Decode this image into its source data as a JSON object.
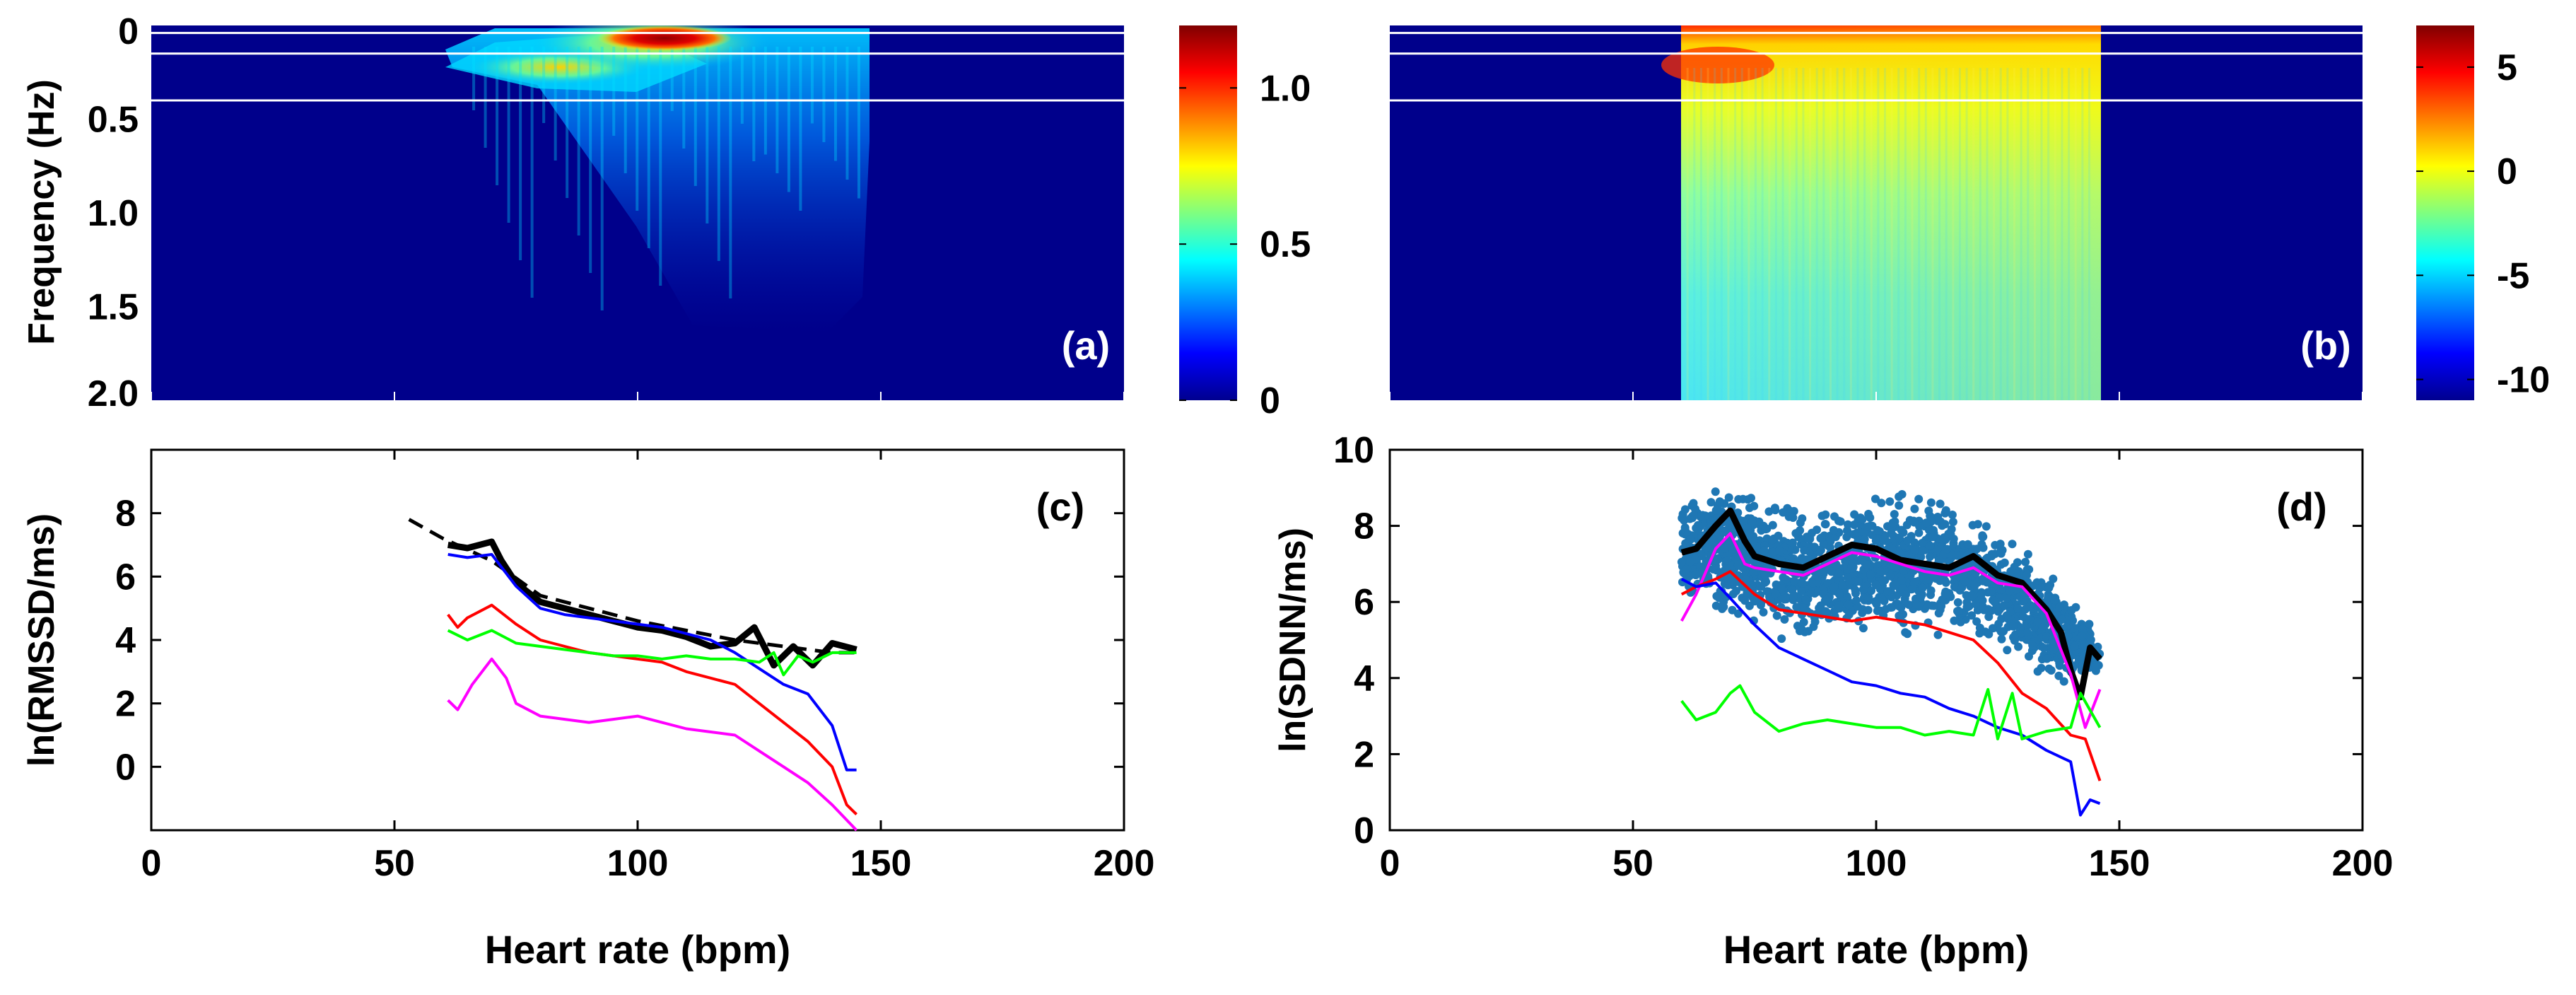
{
  "colors": {
    "background": "#ffffff",
    "heatmap_floor": "#00008b",
    "axis": "#000000",
    "black": "#000000",
    "blue": "#0000ff",
    "red": "#ff0000",
    "green": "#00ff00",
    "magenta": "#ff00ff",
    "scatter": "#1f77b4",
    "guide_line": "#ffffff"
  },
  "chart_data": [
    {
      "panel": "(a)",
      "type": "heatmap",
      "ylabel": "Frequency (Hz)",
      "y_ticks": [
        "0",
        "0.5",
        "1.0",
        "1.5",
        "2.0"
      ],
      "x_range": [
        0,
        200
      ],
      "y_range": [
        0,
        2.0
      ],
      "guide_lines_hz": [
        0.04,
        0.15,
        0.4
      ],
      "colorbar": {
        "ticks": [
          "1.0",
          "0.5",
          "0"
        ],
        "tick_values": [
          1.0,
          0.5,
          0
        ],
        "range": [
          0,
          1.2
        ]
      },
      "hot_spot": {
        "heart_rate": [
          95,
          115
        ],
        "frequency_hz": [
          0.0,
          0.1
        ],
        "value": 1.15
      },
      "active_region": {
        "heart_rate": [
          60,
          146
        ],
        "frequency_hz": [
          0.0,
          1.9
        ]
      }
    },
    {
      "panel": "(b)",
      "type": "heatmap",
      "x_range": [
        0,
        200
      ],
      "y_range": [
        0,
        2.0
      ],
      "guide_lines_hz": [
        0.04,
        0.15,
        0.4
      ],
      "colorbar": {
        "ticks": [
          "5",
          "0",
          "-5",
          "-10"
        ],
        "tick_values": [
          5,
          0,
          -5,
          -10
        ],
        "range": [
          -11,
          7
        ]
      },
      "active_region": {
        "heart_rate": [
          60,
          146
        ],
        "frequency_hz": [
          0.0,
          2.0
        ]
      }
    },
    {
      "panel": "(c)",
      "type": "line",
      "xlabel": "Heart rate (bpm)",
      "ylabel": "ln(RMSSD/ms)",
      "x_ticks": [
        "0",
        "50",
        "100",
        "150",
        "200"
      ],
      "y_ticks": [
        "0",
        "2",
        "4",
        "6",
        "8"
      ],
      "xlim": [
        0,
        200
      ],
      "ylim": [
        -2,
        10
      ],
      "series": [
        {
          "name": "black dashed",
          "color": "black",
          "dashed": true,
          "width": 5,
          "x": [
            53,
            60,
            70,
            80,
            90,
            100,
            110,
            120,
            130,
            140,
            145
          ],
          "values": [
            7.8,
            7.2,
            6.5,
            5.4,
            5.0,
            4.6,
            4.3,
            4.0,
            3.8,
            3.6,
            3.6
          ]
        },
        {
          "name": "black",
          "color": "black",
          "dashed": false,
          "width": 9,
          "x": [
            61,
            65,
            70,
            72,
            75,
            80,
            85,
            90,
            95,
            100,
            105,
            110,
            115,
            120,
            124,
            128,
            132,
            136,
            140,
            145
          ],
          "values": [
            7.0,
            6.9,
            7.1,
            6.5,
            5.8,
            5.2,
            5.0,
            4.8,
            4.6,
            4.4,
            4.3,
            4.1,
            3.8,
            3.9,
            4.4,
            3.2,
            3.8,
            3.2,
            3.9,
            3.7
          ]
        },
        {
          "name": "blue",
          "color": "blue",
          "dashed": false,
          "width": 4,
          "x": [
            61,
            65,
            70,
            75,
            80,
            85,
            90,
            95,
            100,
            105,
            110,
            115,
            120,
            125,
            130,
            135,
            140,
            143,
            145
          ],
          "values": [
            6.7,
            6.6,
            6.7,
            5.7,
            5.0,
            4.8,
            4.7,
            4.6,
            4.5,
            4.4,
            4.2,
            4.0,
            3.6,
            3.1,
            2.6,
            2.3,
            1.3,
            -0.1,
            -0.1
          ]
        },
        {
          "name": "red",
          "color": "red",
          "dashed": false,
          "width": 4,
          "x": [
            61,
            63,
            65,
            70,
            75,
            80,
            85,
            90,
            95,
            100,
            105,
            110,
            115,
            120,
            125,
            130,
            135,
            140,
            143,
            145
          ],
          "values": [
            4.8,
            4.4,
            4.7,
            5.1,
            4.5,
            4.0,
            3.8,
            3.6,
            3.5,
            3.4,
            3.3,
            3.0,
            2.8,
            2.6,
            2.0,
            1.4,
            0.8,
            0.0,
            -1.2,
            -1.5
          ]
        },
        {
          "name": "green",
          "color": "green",
          "dashed": false,
          "width": 4,
          "x": [
            61,
            65,
            70,
            75,
            80,
            85,
            90,
            95,
            100,
            105,
            110,
            115,
            120,
            125,
            128,
            130,
            133,
            136,
            140,
            145
          ],
          "values": [
            4.3,
            4.0,
            4.3,
            3.9,
            3.8,
            3.7,
            3.6,
            3.5,
            3.5,
            3.4,
            3.5,
            3.4,
            3.4,
            3.3,
            3.6,
            2.9,
            3.5,
            3.3,
            3.6,
            3.6
          ]
        },
        {
          "name": "magenta",
          "color": "magenta",
          "dashed": false,
          "width": 4,
          "x": [
            61,
            63,
            66,
            70,
            73,
            75,
            80,
            85,
            90,
            95,
            100,
            105,
            110,
            115,
            120,
            125,
            130,
            135,
            140,
            145
          ],
          "values": [
            2.1,
            1.8,
            2.6,
            3.4,
            2.8,
            2.0,
            1.6,
            1.5,
            1.4,
            1.5,
            1.6,
            1.4,
            1.2,
            1.1,
            1.0,
            0.5,
            0.0,
            -0.5,
            -1.2,
            -2.0
          ]
        }
      ]
    },
    {
      "panel": "(d)",
      "type": "line",
      "xlabel": "Heart rate (bpm)",
      "ylabel": "ln(SDNN/ms)",
      "x_ticks": [
        "0",
        "50",
        "100",
        "150",
        "200"
      ],
      "y_ticks": [
        "0",
        "2",
        "4",
        "6",
        "8",
        "10"
      ],
      "xlim": [
        0,
        200
      ],
      "ylim": [
        0,
        10
      ],
      "scatter_band": {
        "color": "scatter",
        "x_range": [
          60,
          146
        ],
        "lower_x": [
          60,
          70,
          80,
          90,
          100,
          110,
          120,
          130,
          140,
          146
        ],
        "lower": [
          5.8,
          5.2,
          4.6,
          4.6,
          4.8,
          4.9,
          4.8,
          4.2,
          3.4,
          4.0
        ],
        "upper_x": [
          60,
          70,
          80,
          90,
          100,
          110,
          120,
          130,
          140,
          146
        ],
        "upper": [
          9.2,
          9.5,
          9.0,
          8.8,
          9.0,
          9.2,
          8.6,
          7.8,
          6.6,
          5.0
        ]
      },
      "series": [
        {
          "name": "black",
          "color": "black",
          "dashed": false,
          "width": 9,
          "x": [
            60,
            63,
            67,
            70,
            73,
            75,
            80,
            85,
            90,
            95,
            100,
            105,
            110,
            115,
            120,
            125,
            130,
            135,
            138,
            140,
            142,
            144,
            146
          ],
          "values": [
            7.3,
            7.4,
            8.0,
            8.4,
            7.6,
            7.2,
            7.0,
            6.9,
            7.2,
            7.5,
            7.4,
            7.1,
            7.0,
            6.9,
            7.2,
            6.7,
            6.5,
            5.8,
            5.2,
            4.2,
            3.5,
            4.8,
            4.5
          ]
        },
        {
          "name": "magenta",
          "color": "magenta",
          "dashed": false,
          "width": 4,
          "x": [
            60,
            63,
            67,
            70,
            73,
            75,
            80,
            85,
            90,
            95,
            100,
            105,
            110,
            115,
            120,
            125,
            130,
            135,
            140,
            143,
            146
          ],
          "values": [
            5.5,
            6.2,
            7.4,
            7.8,
            7.0,
            6.9,
            6.8,
            6.7,
            7.0,
            7.3,
            7.2,
            7.0,
            6.8,
            6.7,
            6.9,
            6.5,
            6.4,
            5.7,
            4.1,
            2.7,
            3.7
          ]
        },
        {
          "name": "red",
          "color": "red",
          "dashed": false,
          "width": 4,
          "x": [
            60,
            63,
            67,
            70,
            75,
            80,
            85,
            90,
            95,
            100,
            105,
            110,
            115,
            120,
            125,
            130,
            135,
            140,
            143,
            146
          ],
          "values": [
            6.2,
            6.4,
            6.6,
            6.8,
            6.2,
            5.8,
            5.7,
            5.6,
            5.5,
            5.6,
            5.5,
            5.4,
            5.2,
            5.0,
            4.4,
            3.6,
            3.2,
            2.5,
            2.4,
            1.3
          ]
        },
        {
          "name": "blue",
          "color": "blue",
          "dashed": false,
          "width": 4,
          "x": [
            60,
            63,
            67,
            70,
            75,
            80,
            85,
            90,
            95,
            100,
            105,
            110,
            115,
            120,
            125,
            130,
            135,
            140,
            142,
            144,
            146
          ],
          "values": [
            6.6,
            6.4,
            6.5,
            6.1,
            5.4,
            4.8,
            4.5,
            4.2,
            3.9,
            3.8,
            3.6,
            3.5,
            3.2,
            3.0,
            2.7,
            2.5,
            2.1,
            1.8,
            0.4,
            0.8,
            0.7
          ]
        },
        {
          "name": "green",
          "color": "green",
          "dashed": false,
          "width": 4,
          "x": [
            60,
            63,
            67,
            70,
            72,
            75,
            80,
            85,
            90,
            95,
            100,
            105,
            110,
            115,
            120,
            123,
            125,
            128,
            130,
            135,
            140,
            142,
            146
          ],
          "values": [
            3.4,
            2.9,
            3.1,
            3.6,
            3.8,
            3.1,
            2.6,
            2.8,
            2.9,
            2.8,
            2.7,
            2.7,
            2.5,
            2.6,
            2.5,
            3.7,
            2.4,
            3.6,
            2.4,
            2.6,
            2.7,
            3.6,
            2.7
          ]
        }
      ]
    }
  ],
  "labels": {
    "a": "(a)",
    "b": "(b)",
    "c": "(c)",
    "d": "(d)"
  }
}
